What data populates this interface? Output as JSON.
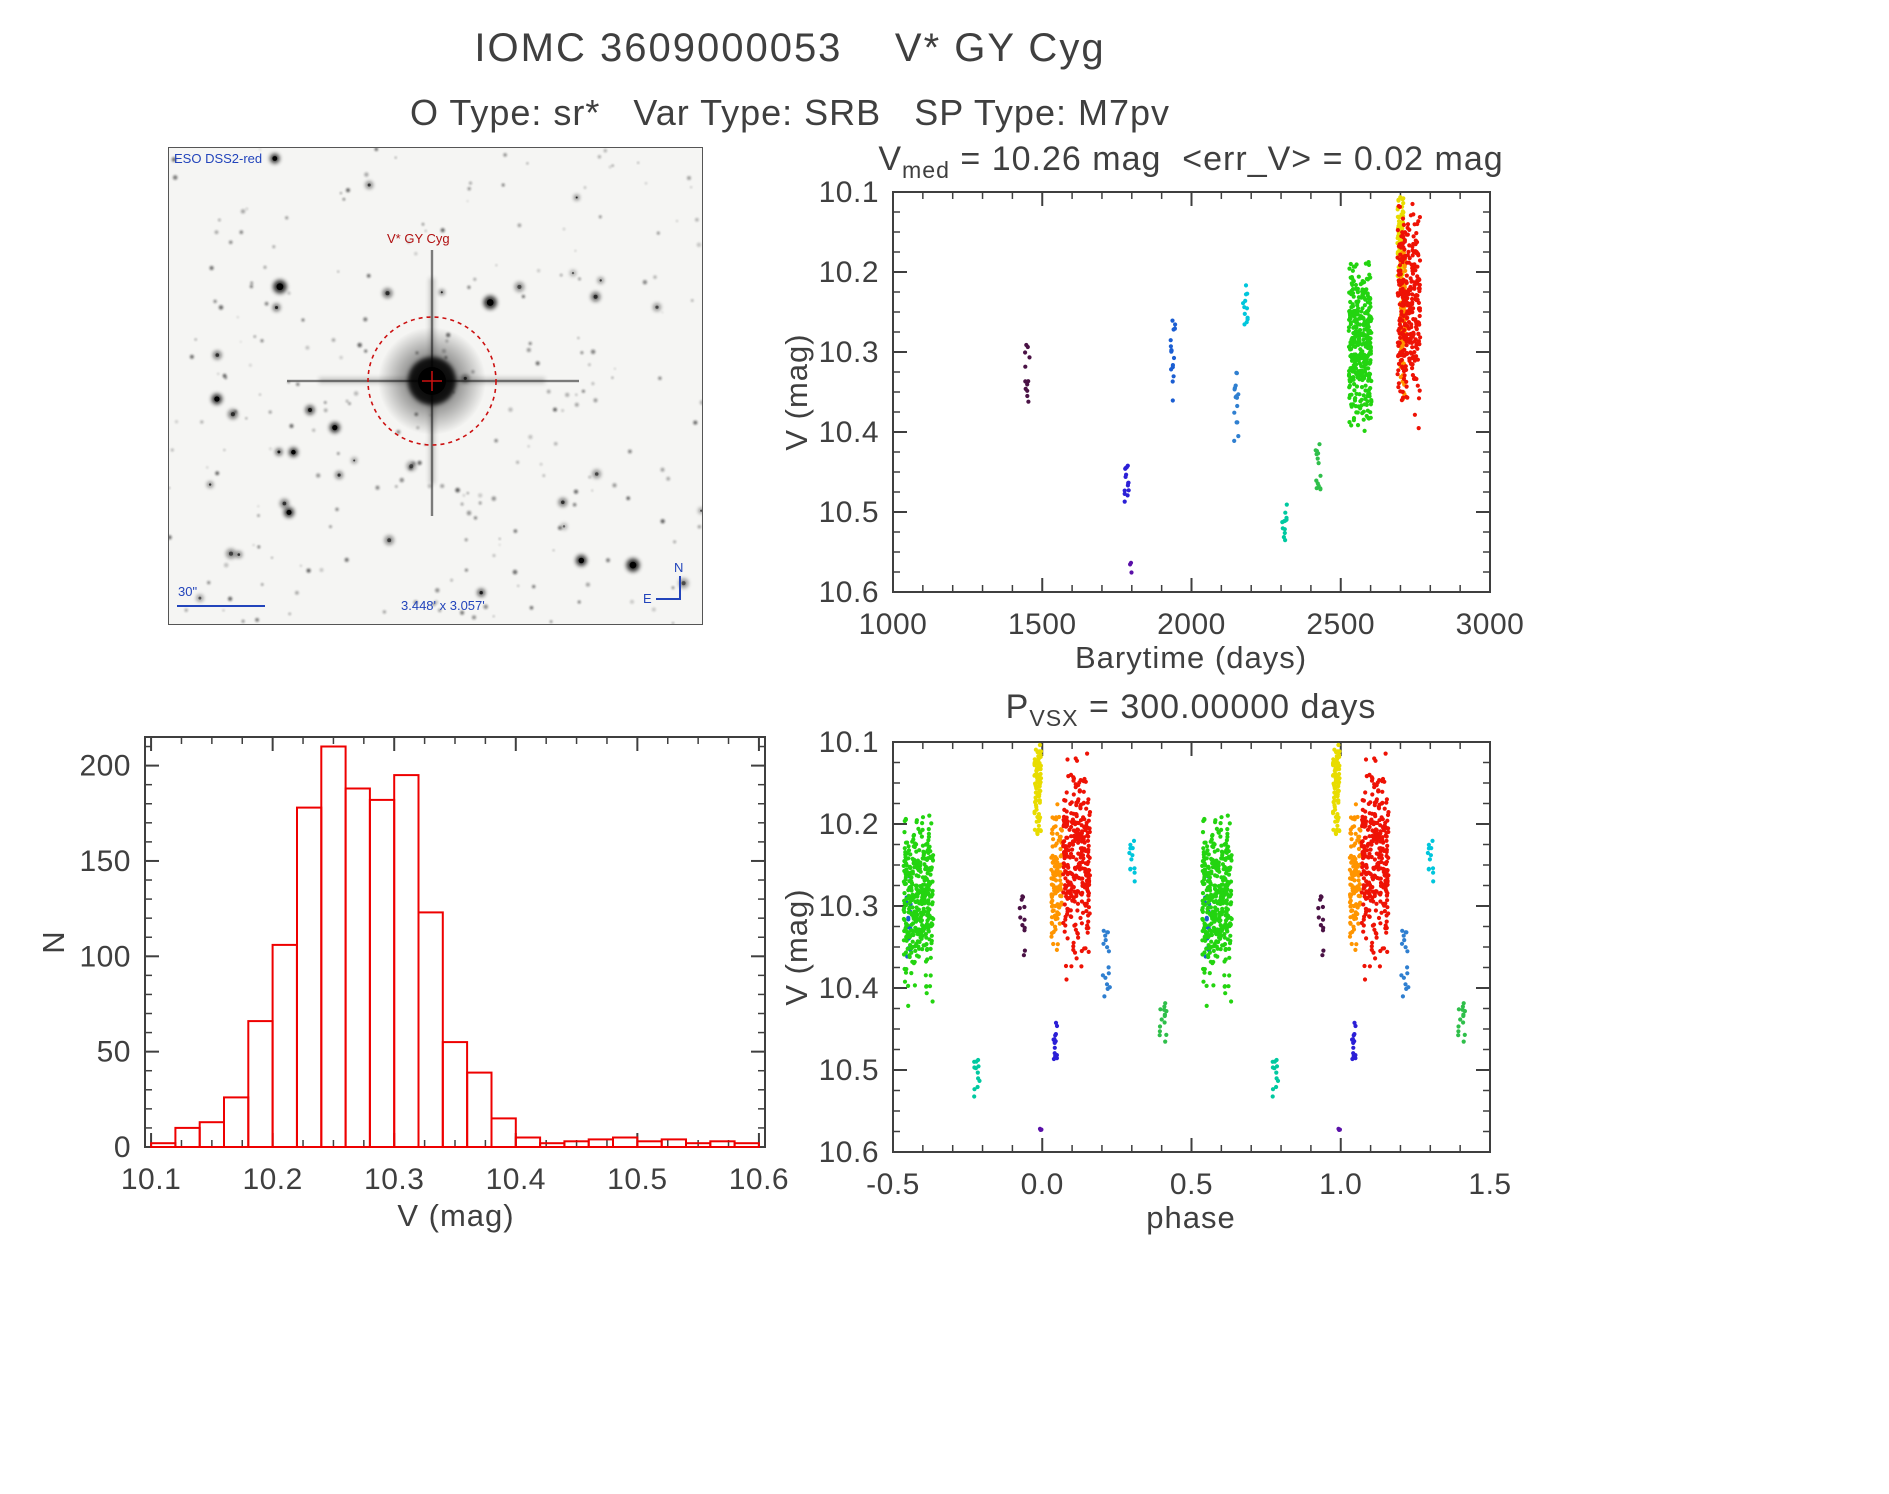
{
  "page": {
    "title": "IOMC 3609000053    V* GY Cyg",
    "subtitle": "O Type: sr*   Var Type: SRB   SP Type: M7pv"
  },
  "starfield": {
    "survey_label": "ESO DSS2-red",
    "target_label": "V* GY Cyg",
    "scale_label": "30\"",
    "fov_label": "3.448' x 3.057'",
    "compass_north": "N",
    "compass_east": "E"
  },
  "stats": {
    "v_med_mag": 10.26,
    "err_v_mag": 0.02,
    "period_days": 300.0
  },
  "chart_data": [
    {
      "type": "scatter",
      "name": "lightcurve",
      "title": "V_med = 10.26 mag  <err_V> = 0.02 mag",
      "title_parts": {
        "prefix": "V",
        "sub": "med",
        "rest": " = 10.26 mag  <err_V> = 0.02 mag"
      },
      "xlabel": "Barytime (days)",
      "ylabel": "V (mag)",
      "xlim": [
        1000,
        3000
      ],
      "ylim": [
        10.1,
        10.6
      ],
      "y_inverted": true,
      "xticks": [
        1000,
        1500,
        2000,
        2500,
        3000
      ],
      "xtick_labels": [
        "1000",
        "1500",
        "2000",
        "2500",
        "3000"
      ],
      "yticks": [
        10.1,
        10.2,
        10.3,
        10.4,
        10.5,
        10.6
      ],
      "ytick_labels": [
        "10.1",
        "10.2",
        "10.3",
        "10.4",
        "10.5",
        "10.6"
      ],
      "x_minor": 100,
      "y_minor": 0.025,
      "grid": false,
      "legend": false,
      "series": [
        {
          "name": "epoch-1450",
          "color": "#4a1245",
          "t_center": 1452,
          "t_jitter": 10,
          "phase_center": 0.932,
          "phase_jitter": 0.01,
          "v_min": 10.285,
          "v_max": 10.365,
          "v_center": 10.33,
          "v_sigma": 0.03,
          "n": 12,
          "dist": "uniform"
        },
        {
          "name": "epoch-1780",
          "color": "#2b1fd6",
          "t_center": 1782,
          "t_jitter": 8,
          "phase_center": 0.046,
          "phase_jitter": 0.008,
          "v_min": 10.44,
          "v_max": 10.487,
          "v_center": 10.463,
          "v_sigma": 0.015,
          "n": 14,
          "dist": "uniform"
        },
        {
          "name": "epoch-1798-faint",
          "color": "#5a10a8",
          "t_center": 1798,
          "t_jitter": 4,
          "phase_center": 0.996,
          "phase_jitter": 0.006,
          "v_min": 10.562,
          "v_max": 10.576,
          "v_center": 10.569,
          "v_sigma": 0.004,
          "n": 3,
          "dist": "uniform"
        },
        {
          "name": "epoch-1938",
          "color": "#1b5ed2",
          "t_center": 1938,
          "t_jitter": 8,
          "phase_center": 0.553,
          "phase_jitter": 0.01,
          "v_min": 10.26,
          "v_max": 10.362,
          "v_center": 10.31,
          "v_sigma": 0.03,
          "n": 16,
          "dist": "uniform"
        },
        {
          "name": "epoch-2150",
          "color": "#2f7fd0",
          "t_center": 2150,
          "t_jitter": 8,
          "phase_center": 0.215,
          "phase_jitter": 0.012,
          "v_min": 10.325,
          "v_max": 10.412,
          "v_center": 10.368,
          "v_sigma": 0.025,
          "n": 16,
          "dist": "uniform"
        },
        {
          "name": "epoch-2180",
          "color": "#00c6dc",
          "t_center": 2180,
          "t_jitter": 8,
          "phase_center": 0.3,
          "phase_jitter": 0.01,
          "v_min": 10.215,
          "v_max": 10.272,
          "v_center": 10.243,
          "v_sigma": 0.018,
          "n": 12,
          "dist": "uniform"
        },
        {
          "name": "epoch-2312",
          "color": "#00c9a0",
          "t_center": 2312,
          "t_jitter": 8,
          "phase_center": 0.782,
          "phase_jitter": 0.01,
          "v_min": 10.487,
          "v_max": 10.537,
          "v_center": 10.512,
          "v_sigma": 0.015,
          "n": 12,
          "dist": "uniform"
        },
        {
          "name": "epoch-2426",
          "color": "#2fbf4a",
          "t_center": 2426,
          "t_jitter": 10,
          "phase_center": 0.405,
          "phase_jitter": 0.012,
          "v_min": 10.415,
          "v_max": 10.477,
          "v_center": 10.446,
          "v_sigma": 0.02,
          "n": 14,
          "dist": "uniform"
        },
        {
          "name": "epoch-2565",
          "color": "#23d410",
          "t_center": 2565,
          "t_jitter": 38,
          "phase_center": 0.585,
          "phase_jitter": 0.05,
          "v_min": 10.185,
          "v_max": 10.435,
          "v_center": 10.29,
          "v_sigma": 0.05,
          "n": 380,
          "dist": "normal"
        },
        {
          "name": "epoch-2700",
          "color": "#e8dc00",
          "t_center": 2700,
          "t_jitter": 10,
          "phase_center": 0.985,
          "phase_jitter": 0.011,
          "v_min": 10.102,
          "v_max": 10.215,
          "v_center": 10.155,
          "v_sigma": 0.035,
          "n": 90,
          "dist": "normal"
        },
        {
          "name": "epoch-2708",
          "color": "#ff9500",
          "t_center": 2708,
          "t_jitter": 8,
          "phase_center": 0.048,
          "phase_jitter": 0.018,
          "v_min": 10.175,
          "v_max": 10.365,
          "v_center": 10.255,
          "v_sigma": 0.05,
          "n": 120,
          "dist": "normal"
        },
        {
          "name": "epoch-2728",
          "color": "#ee1205",
          "t_center": 2728,
          "t_jitter": 38,
          "phase_center": 0.115,
          "phase_jitter": 0.045,
          "v_min": 10.108,
          "v_max": 10.405,
          "v_center": 10.245,
          "v_sigma": 0.06,
          "n": 320,
          "dist": "normal"
        }
      ]
    },
    {
      "type": "bar",
      "name": "v-histogram",
      "title": "",
      "xlabel": "V (mag)",
      "ylabel": "N",
      "xlim": [
        10.095,
        10.605
      ],
      "ylim": [
        0,
        215
      ],
      "y_inverted": false,
      "xticks": [
        10.1,
        10.2,
        10.3,
        10.4,
        10.5,
        10.6
      ],
      "xtick_labels": [
        "10.1",
        "10.2",
        "10.3",
        "10.4",
        "10.5",
        "10.6"
      ],
      "yticks": [
        0,
        50,
        100,
        150,
        200
      ],
      "ytick_labels": [
        "0",
        "50",
        "100",
        "150",
        "200"
      ],
      "x_minor": 0.025,
      "y_minor": 10,
      "grid": false,
      "bar_color": "#ee0000",
      "bins": {
        "start": 10.1,
        "width": 0.02,
        "counts": [
          2,
          10,
          13,
          26,
          66,
          106,
          178,
          210,
          188,
          182,
          195,
          123,
          55,
          39,
          15,
          5,
          2,
          3,
          4,
          5,
          3,
          4,
          2,
          3,
          2
        ]
      }
    },
    {
      "type": "scatter",
      "name": "phase-folded-lightcurve",
      "title": "P_VSX = 300.00000 days",
      "title_parts": {
        "prefix": "P",
        "sub": "VSX",
        "rest": " = 300.00000 days"
      },
      "xlabel": "phase",
      "ylabel": "V (mag)",
      "xlim": [
        -0.5,
        1.5
      ],
      "ylim": [
        10.1,
        10.6
      ],
      "y_inverted": true,
      "xticks": [
        -0.5,
        0.0,
        0.5,
        1.0,
        1.5
      ],
      "xtick_labels": [
        "-0.5",
        "0.0",
        "0.5",
        "1.0",
        "1.5"
      ],
      "yticks": [
        10.1,
        10.2,
        10.3,
        10.4,
        10.5,
        10.6
      ],
      "ytick_labels": [
        "10.1",
        "10.2",
        "10.3",
        "10.4",
        "10.5",
        "10.6"
      ],
      "x_minor": 0.1,
      "y_minor": 0.025,
      "grid": false,
      "period_days": 300.0,
      "series_source": "chart_data[0].series folded at period; each point drawn twice across one cycle"
    }
  ]
}
